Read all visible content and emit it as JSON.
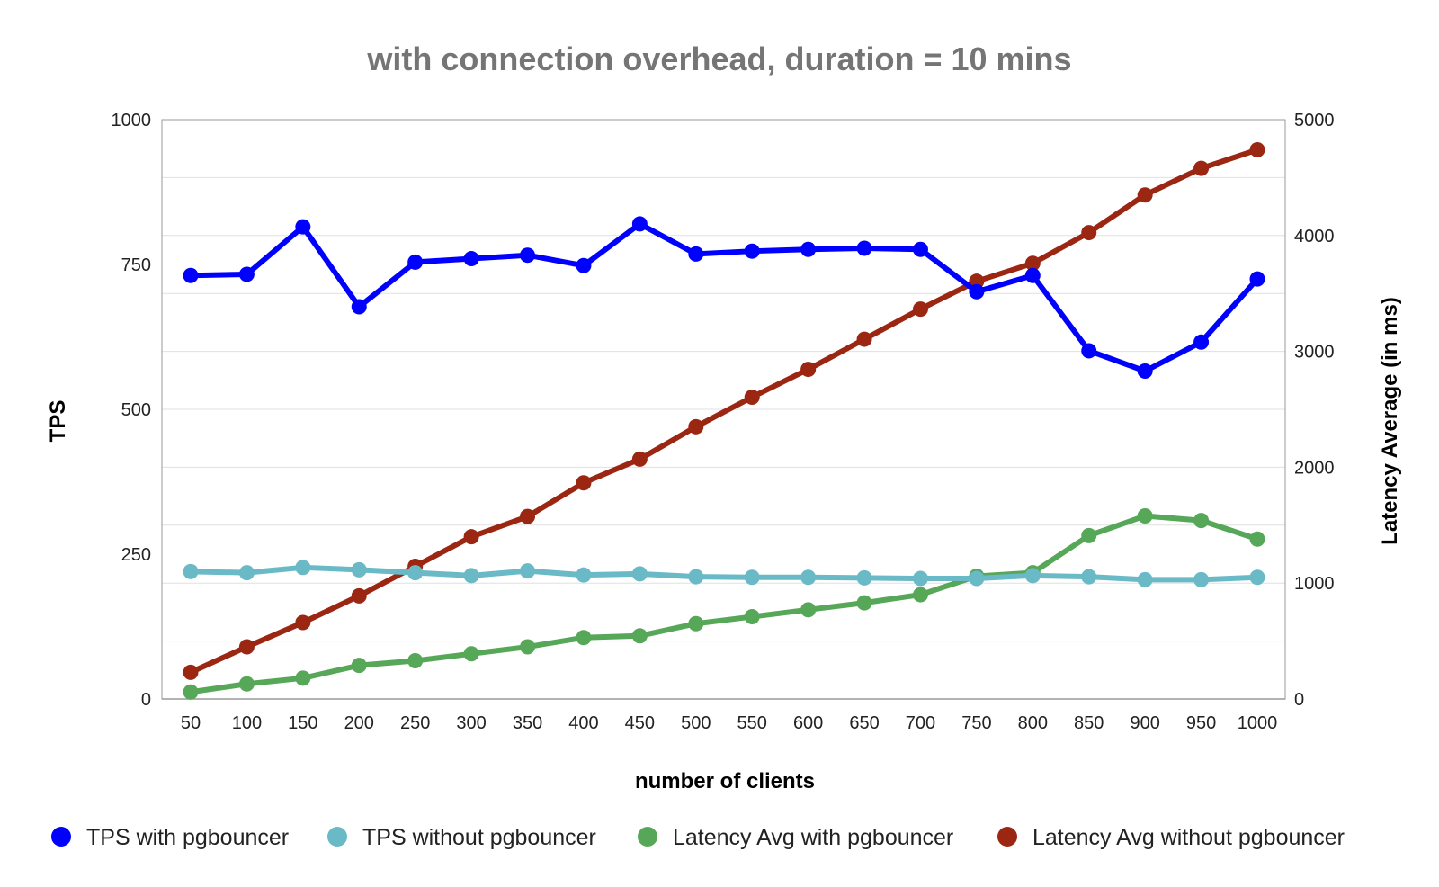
{
  "chart_data": {
    "type": "line",
    "title": "with connection overhead, duration = 10 mins",
    "xlabel": "number of clients",
    "ylabel": "TPS",
    "y2label": "Latency Average (in ms)",
    "ylim": [
      0,
      1000
    ],
    "y2lim": [
      0,
      5000
    ],
    "yticks": [
      0,
      250,
      500,
      750,
      1000
    ],
    "y2ticks": [
      0,
      1000,
      2000,
      3000,
      4000,
      5000
    ],
    "categories": [
      "50",
      "100",
      "150",
      "200",
      "250",
      "300",
      "350",
      "400",
      "450",
      "500",
      "550",
      "600",
      "650",
      "700",
      "750",
      "800",
      "850",
      "900",
      "950",
      "1000"
    ],
    "legend_position": "bottom",
    "series": [
      {
        "name": "TPS with pgbouncer",
        "axis": "left",
        "color": "#0000ff",
        "values": [
          731,
          733,
          815,
          677,
          754,
          760,
          766,
          748,
          820,
          768,
          773,
          776,
          778,
          776,
          703,
          731,
          601,
          566,
          616,
          725
        ]
      },
      {
        "name": "TPS without pgbouncer",
        "axis": "left",
        "color": "#6ab9c6",
        "values": [
          220,
          218,
          227,
          223,
          218,
          213,
          221,
          214,
          216,
          211,
          210,
          210,
          209,
          208,
          208,
          213,
          211,
          206,
          206,
          210
        ]
      },
      {
        "name": "Latency Avg with pgbouncer",
        "axis": "right",
        "color": "#56a758",
        "values": [
          60,
          130,
          180,
          290,
          330,
          390,
          450,
          530,
          545,
          650,
          710,
          770,
          830,
          900,
          1060,
          1090,
          1410,
          1580,
          1540,
          1380
        ]
      },
      {
        "name": "Latency Avg without pgbouncer",
        "axis": "right",
        "color": "#9b2713",
        "values": [
          230,
          450,
          660,
          890,
          1145,
          1400,
          1575,
          1865,
          2070,
          2350,
          2605,
          2845,
          3105,
          3365,
          3605,
          3760,
          4025,
          4350,
          4580,
          4740
        ]
      }
    ]
  }
}
